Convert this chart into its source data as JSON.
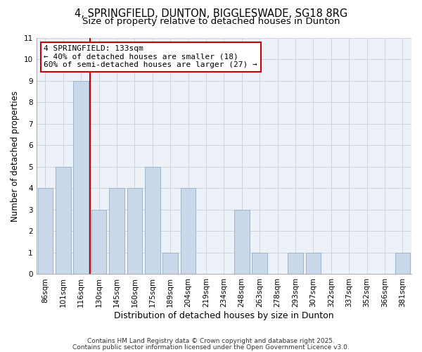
{
  "title": "4, SPRINGFIELD, DUNTON, BIGGLESWADE, SG18 8RG",
  "subtitle": "Size of property relative to detached houses in Dunton",
  "xlabel": "Distribution of detached houses by size in Dunton",
  "ylabel": "Number of detached properties",
  "bar_labels": [
    "86sqm",
    "101sqm",
    "116sqm",
    "130sqm",
    "145sqm",
    "160sqm",
    "175sqm",
    "189sqm",
    "204sqm",
    "219sqm",
    "234sqm",
    "248sqm",
    "263sqm",
    "278sqm",
    "293sqm",
    "307sqm",
    "322sqm",
    "337sqm",
    "352sqm",
    "366sqm",
    "381sqm"
  ],
  "bar_values": [
    4,
    5,
    9,
    3,
    4,
    4,
    5,
    1,
    4,
    0,
    0,
    3,
    1,
    0,
    1,
    1,
    0,
    0,
    0,
    0,
    1
  ],
  "bar_color": "#c9d9ea",
  "bar_edge_color": "#9ab5cc",
  "vline_x": 2.5,
  "vline_color": "#cc0000",
  "annotation_text": "4 SPRINGFIELD: 133sqm\n← 40% of detached houses are smaller (18)\n60% of semi-detached houses are larger (27) →",
  "annotation_box_facecolor": "#ffffff",
  "annotation_box_edgecolor": "#cc0000",
  "ylim": [
    0,
    11
  ],
  "yticks": [
    0,
    1,
    2,
    3,
    4,
    5,
    6,
    7,
    8,
    9,
    10,
    11
  ],
  "bg_color": "#ffffff",
  "plot_bg_color": "#edf2f9",
  "grid_color": "#c8d0dc",
  "footer_line1": "Contains HM Land Registry data © Crown copyright and database right 2025.",
  "footer_line2": "Contains public sector information licensed under the Open Government Licence v3.0.",
  "title_fontsize": 10.5,
  "subtitle_fontsize": 9.5,
  "xlabel_fontsize": 9,
  "ylabel_fontsize": 8.5,
  "tick_fontsize": 7.5,
  "annotation_fontsize": 8,
  "footer_fontsize": 6.5
}
